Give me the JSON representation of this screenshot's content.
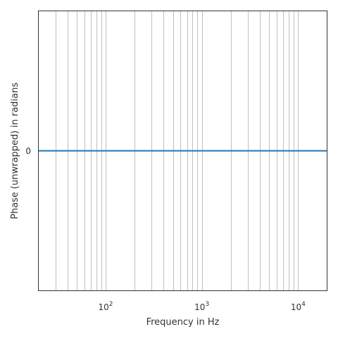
{
  "chart_data": {
    "type": "line",
    "title": "",
    "xlabel": "Frequency in Hz",
    "ylabel": "Phase (unwrapped) in radians",
    "x_scale": "log",
    "xlim": [
      20,
      20000
    ],
    "ylim": [
      -1,
      1
    ],
    "x_ticks": [
      {
        "value": 100,
        "base": "10",
        "exp": "2"
      },
      {
        "value": 1000,
        "base": "10",
        "exp": "3"
      },
      {
        "value": 10000,
        "base": "10",
        "exp": "4"
      }
    ],
    "y_ticks": [
      {
        "value": 0,
        "label": "0"
      }
    ],
    "grid": {
      "x_minor": true,
      "x_major": true,
      "y": false
    },
    "series": [
      {
        "color": "#1f77b4",
        "x": [
          20,
          20000
        ],
        "y": [
          0,
          0
        ]
      }
    ]
  }
}
